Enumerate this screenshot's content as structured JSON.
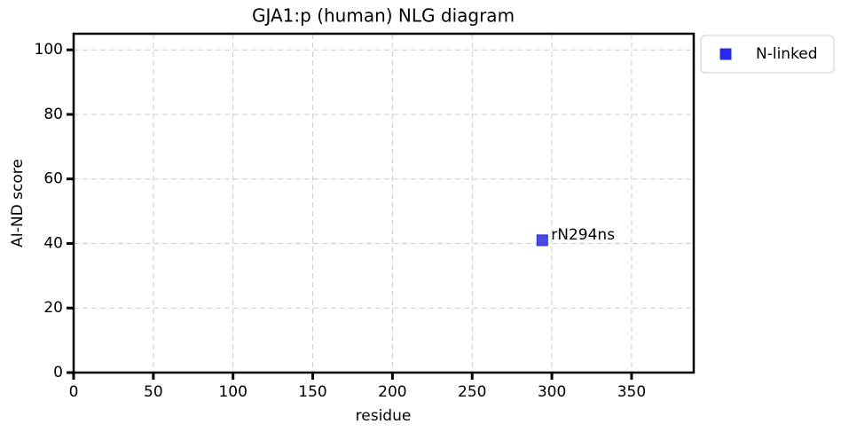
{
  "chart_data": {
    "type": "scatter",
    "title": "GJA1:p (human) NLG diagram",
    "x_label": "residue",
    "y_label": "AI-ND score",
    "series": [
      {
        "name": "N-linked",
        "color": "#2a2ae6",
        "x": [
          294
        ],
        "values": [
          41
        ],
        "point_labels": [
          "rN294ns"
        ]
      }
    ],
    "xlim": [
      0,
      389
    ],
    "ylim": [
      0,
      105
    ],
    "xticks": [
      0,
      50,
      100,
      150,
      200,
      250,
      300,
      350
    ],
    "yticks": [
      0,
      20,
      40,
      60,
      80,
      100
    ],
    "grid": true,
    "legend": "outside-upper-right"
  }
}
